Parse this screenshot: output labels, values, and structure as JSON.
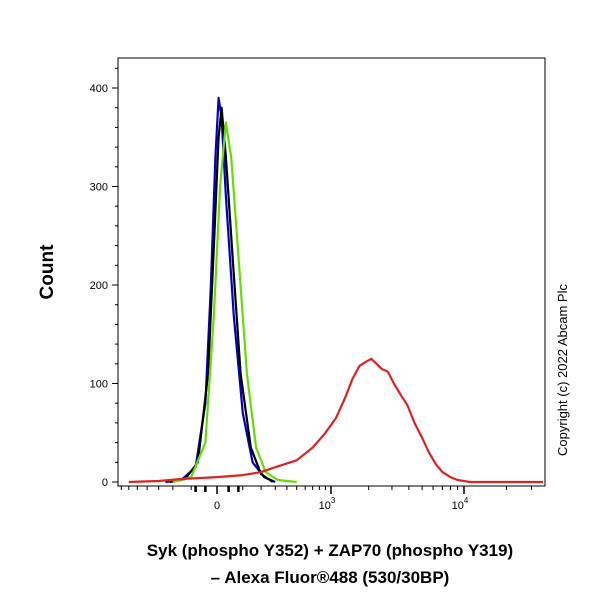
{
  "chart_data": {
    "type": "line",
    "subtype": "flow-cytometry-histogram",
    "xlabel_line1": "Syk (phospho Y352) + ZAP70 (phospho Y319)",
    "xlabel_line2": "– Alexa Fluor®488 (530/30BP)",
    "ylabel": "Count",
    "ylim": [
      0,
      430
    ],
    "x_scale": "biexponential",
    "x_ticks": [
      {
        "label": "0",
        "base": "0",
        "exp": ""
      },
      {
        "label": "10^3",
        "base": "10",
        "exp": "3"
      },
      {
        "label": "10^4",
        "base": "10",
        "exp": "4"
      }
    ],
    "y_ticks": [
      {
        "label": "0",
        "value": 0
      },
      {
        "label": "100",
        "value": 100
      },
      {
        "label": "200",
        "value": 200
      },
      {
        "label": "300",
        "value": 300
      },
      {
        "label": "400",
        "value": 400
      }
    ],
    "copyright": "Copyright (c) 2022 Abcam Plc",
    "legend": false,
    "grid": false,
    "series": [
      {
        "color": "#0000cc",
        "points": [
          [
            -250,
            0
          ],
          [
            -150,
            2
          ],
          [
            -80,
            15
          ],
          [
            -40,
            80
          ],
          [
            -20,
            200
          ],
          [
            -5,
            330
          ],
          [
            5,
            390
          ],
          [
            15,
            370
          ],
          [
            30,
            290
          ],
          [
            60,
            170
          ],
          [
            100,
            70
          ],
          [
            150,
            20
          ],
          [
            220,
            5
          ],
          [
            300,
            0
          ]
        ]
      },
      {
        "color": "#000000",
        "points": [
          [
            -220,
            0
          ],
          [
            -130,
            3
          ],
          [
            -70,
            20
          ],
          [
            -30,
            110
          ],
          [
            -10,
            240
          ],
          [
            5,
            350
          ],
          [
            15,
            380
          ],
          [
            30,
            330
          ],
          [
            55,
            230
          ],
          [
            90,
            110
          ],
          [
            140,
            35
          ],
          [
            200,
            8
          ],
          [
            280,
            0
          ]
        ]
      },
      {
        "color": "#66dd00",
        "points": [
          [
            -200,
            0
          ],
          [
            -100,
            5
          ],
          [
            -40,
            40
          ],
          [
            -10,
            170
          ],
          [
            10,
            300
          ],
          [
            30,
            365
          ],
          [
            50,
            330
          ],
          [
            80,
            230
          ],
          [
            120,
            110
          ],
          [
            170,
            35
          ],
          [
            230,
            10
          ],
          [
            320,
            2
          ],
          [
            500,
            0
          ]
        ]
      },
      {
        "color": "#dd2222",
        "points": [
          [
            -600,
            0
          ],
          [
            -300,
            1
          ],
          [
            -150,
            3
          ],
          [
            0,
            5
          ],
          [
            100,
            7
          ],
          [
            200,
            10
          ],
          [
            300,
            15
          ],
          [
            500,
            22
          ],
          [
            700,
            35
          ],
          [
            900,
            50
          ],
          [
            1100,
            65
          ],
          [
            1300,
            85
          ],
          [
            1500,
            105
          ],
          [
            1700,
            118
          ],
          [
            1900,
            122
          ],
          [
            2100,
            125
          ],
          [
            2300,
            120
          ],
          [
            2500,
            115
          ],
          [
            2800,
            112
          ],
          [
            3100,
            100
          ],
          [
            3500,
            88
          ],
          [
            3900,
            78
          ],
          [
            4400,
            60
          ],
          [
            5000,
            45
          ],
          [
            5600,
            30
          ],
          [
            6300,
            18
          ],
          [
            7000,
            10
          ],
          [
            8000,
            5
          ],
          [
            9000,
            2
          ],
          [
            10000,
            1
          ],
          [
            11000,
            0
          ],
          [
            20000,
            0
          ],
          [
            40000,
            0
          ]
        ]
      }
    ]
  }
}
